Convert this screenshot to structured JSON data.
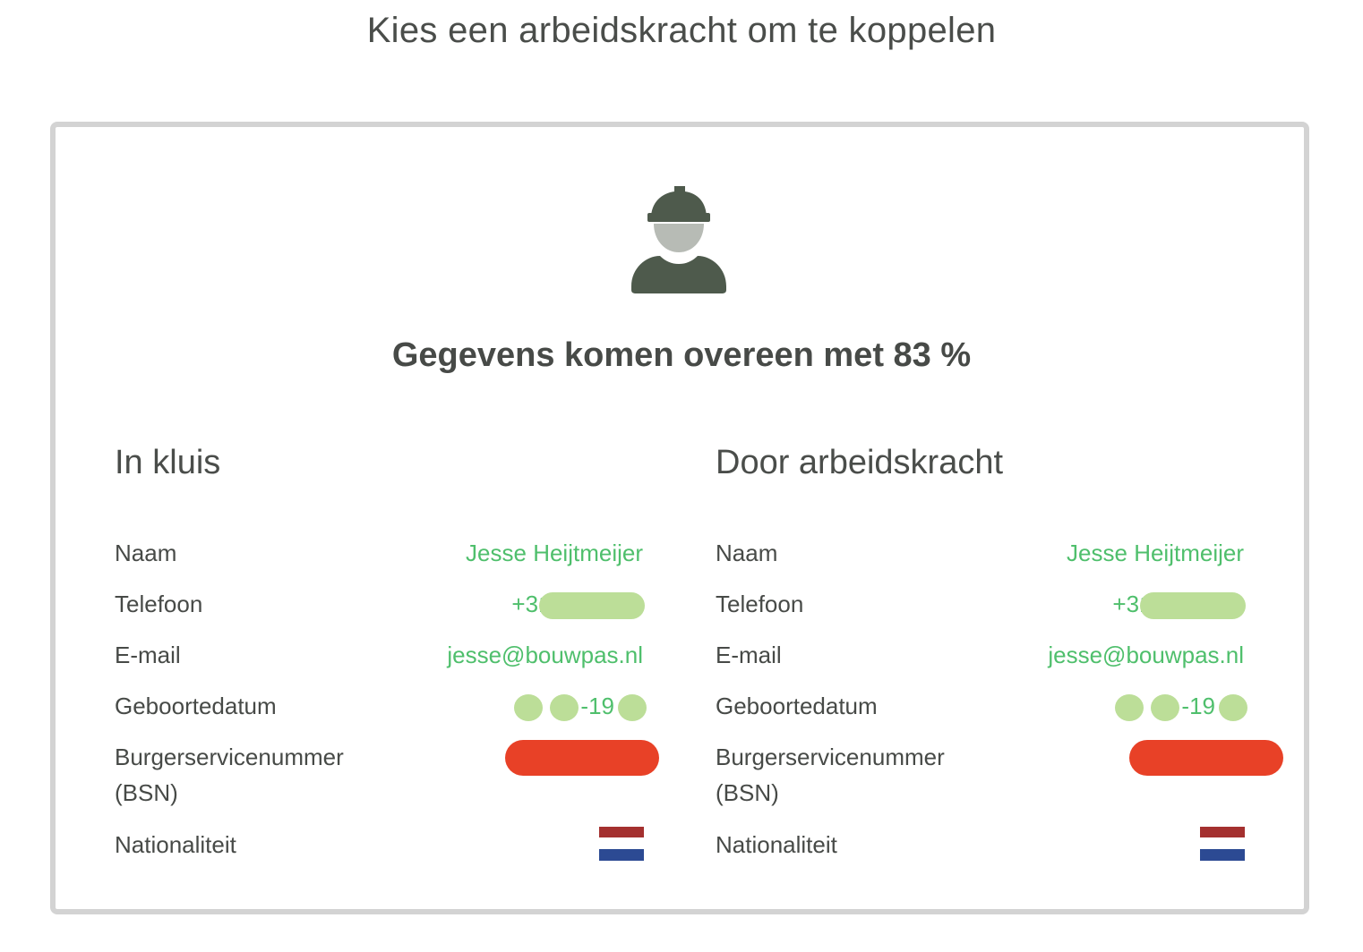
{
  "page": {
    "title": "Kies een arbeidskracht om te koppelen"
  },
  "card": {
    "icon": "construction-worker-icon",
    "match_text": "Gegevens komen overeen met 83 %",
    "match_percent": 83,
    "colors": {
      "value_green": "#4fbf6c",
      "blur_green": "#bcde98",
      "redact_red": "#e84127",
      "icon_dark": "#4e5a4c",
      "icon_face": "#b7bbb5"
    },
    "columns": [
      {
        "title": "In kluis",
        "rows": {
          "naam": {
            "label": "Naam",
            "value": "Jesse Heijtmeijer"
          },
          "telefoon": {
            "label": "Telefoon",
            "value": "+316"
          },
          "email": {
            "label": "E-mail",
            "value": "jesse@bouwpas.nl"
          },
          "geboortedatum": {
            "label": "Geboortedatum",
            "value": "-   -19"
          },
          "bsn": {
            "label_line1": "Burgerservicenummer",
            "label_line2": "(BSN)"
          },
          "nationaliteit": {
            "label": "Nationaliteit",
            "flag": "netherlands-flag"
          }
        }
      },
      {
        "title": "Door arbeidskracht",
        "rows": {
          "naam": {
            "label": "Naam",
            "value": "Jesse Heijtmeijer"
          },
          "telefoon": {
            "label": "Telefoon",
            "value": "+316"
          },
          "email": {
            "label": "E-mail",
            "value": "jesse@bouwpas.nl"
          },
          "geboortedatum": {
            "label": "Geboortedatum",
            "value": "-   -19"
          },
          "bsn": {
            "label_line1": "Burgerservicenummer",
            "label_line2": "(BSN)"
          },
          "nationaliteit": {
            "label": "Nationaliteit",
            "flag": "netherlands-flag"
          }
        }
      }
    ]
  }
}
